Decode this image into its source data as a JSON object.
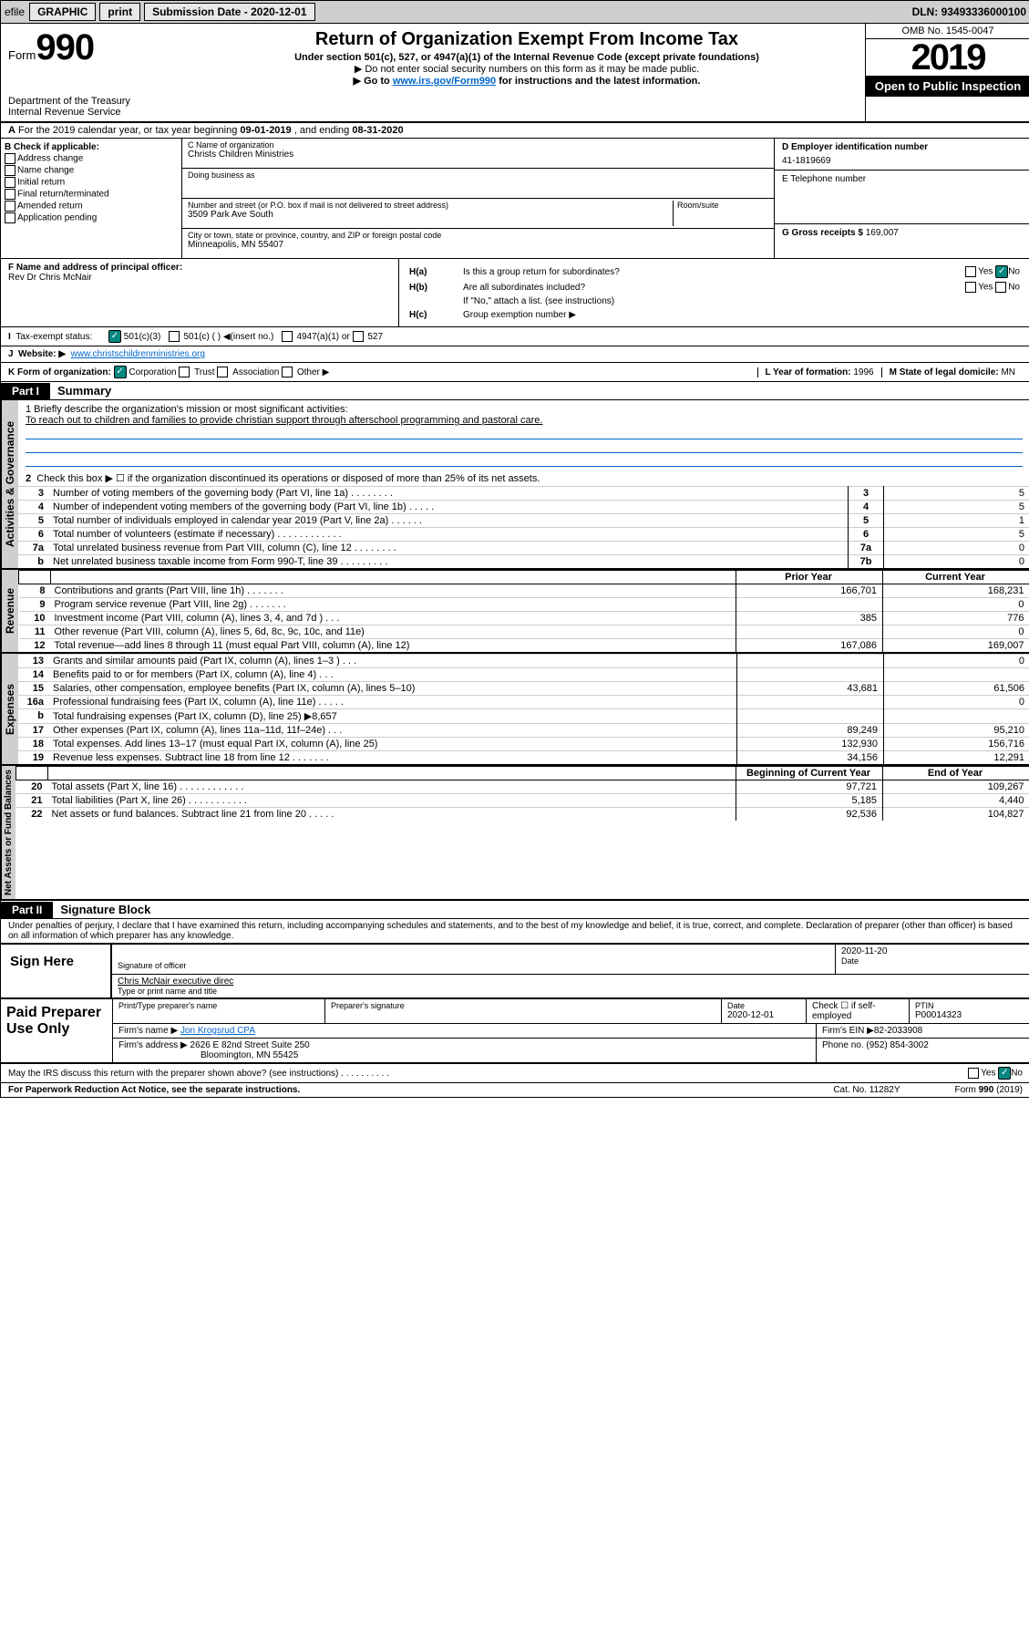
{
  "topbar": {
    "efile": "efile",
    "graphic": "GRAPHIC",
    "print": "print",
    "subdate_lbl": "Submission Date - ",
    "subdate": "2020-12-01",
    "dln_lbl": "DLN: ",
    "dln": "93493336000100"
  },
  "header": {
    "form": "Form",
    "num": "990",
    "dept": "Department of the Treasury",
    "irs": "Internal Revenue Service",
    "title": "Return of Organization Exempt From Income Tax",
    "sub": "Under section 501(c), 527, or 4947(a)(1) of the Internal Revenue Code (except private foundations)",
    "note1": "▶ Do not enter social security numbers on this form as it may be made public.",
    "note2a": "▶ Go to ",
    "note2link": "www.irs.gov/Form990",
    "note2b": " for instructions and the latest information.",
    "omb": "OMB No. 1545-0047",
    "year": "2019",
    "open": "Open to Public Inspection"
  },
  "lineA": {
    "a": "A",
    "txt1": "For the 2019 calendar year, or tax year beginning ",
    "d1": "09-01-2019",
    "txt2": " , and ending ",
    "d2": "08-31-2020"
  },
  "boxB": {
    "hdr": "B Check if applicable:",
    "opts": [
      "Address change",
      "Name change",
      "Initial return",
      "Final return/terminated",
      "Amended return",
      "Application pending"
    ]
  },
  "boxC": {
    "name_lbl": "C Name of organization",
    "name": "Christs Children Ministries",
    "dba_lbl": "Doing business as",
    "dba": "",
    "addr_lbl": "Number and street (or P.O. box if mail is not delivered to street address)",
    "room_lbl": "Room/suite",
    "addr": "3509 Park Ave South",
    "city_lbl": "City or town, state or province, country, and ZIP or foreign postal code",
    "city": "Minneapolis, MN  55407"
  },
  "boxD": {
    "lbl": "D Employer identification number",
    "val": "41-1819669"
  },
  "boxE": {
    "lbl": "E Telephone number",
    "val": ""
  },
  "boxG": {
    "lbl": "G Gross receipts $ ",
    "val": "169,007"
  },
  "boxF": {
    "lbl": "F  Name and address of principal officer:",
    "name": "Rev Dr Chris McNair"
  },
  "boxH": {
    "a": "H(a)",
    "a_txt": "Is this a group return for subordinates?",
    "b": "H(b)",
    "b_txt": "Are all subordinates included?",
    "b_note": "If \"No,\" attach a list. (see instructions)",
    "c": "H(c)",
    "c_txt": "Group exemption number ▶",
    "yes": "Yes",
    "no": "No"
  },
  "taxI": {
    "lbl": "Tax-exempt status:",
    "o1": "501(c)(3)",
    "o2": "501(c) (  ) ◀(insert no.)",
    "o3": "4947(a)(1) or",
    "o4": "527"
  },
  "website": {
    "lbl": "Website: ▶",
    "val": "www.christschildrenministries.org"
  },
  "lineK": {
    "k": "K Form of organization:",
    "corp": "Corporation",
    "trust": "Trust",
    "assoc": "Association",
    "other": "Other ▶",
    "l": "L Year of formation: ",
    "lval": "1996",
    "m": "M State of legal domicile: ",
    "mval": "MN"
  },
  "part1": {
    "hdr": "Part I",
    "title": "Summary",
    "q1": "1  Briefly describe the organization's mission or most significant activities:",
    "mission": "To reach out to children and families to provide christian support through afterschool programming and pastoral care.",
    "q2": "Check this box ▶ ☐  if the organization discontinued its operations or disposed of more than 25% of its net assets.",
    "rows_gov": [
      {
        "n": "3",
        "t": "Number of voting members of the governing body (Part VI, line 1a) .   .   .   .   .   .   .   .",
        "r": "3",
        "v": "5"
      },
      {
        "n": "4",
        "t": "Number of independent voting members of the governing body (Part VI, line 1b)   .   .   .   .   .",
        "r": "4",
        "v": "5"
      },
      {
        "n": "5",
        "t": "Total number of individuals employed in calendar year 2019 (Part V, line 2a)  .   .   .   .   .   .",
        "r": "5",
        "v": "1"
      },
      {
        "n": "6",
        "t": "Total number of volunteers (estimate if necessary)   .   .   .   .   .   .   .   .   .   .   .   .",
        "r": "6",
        "v": "5"
      },
      {
        "n": "7a",
        "t": "Total unrelated business revenue from Part VIII, column (C), line 12   .   .   .   .   .   .   .   .",
        "r": "7a",
        "v": "0"
      },
      {
        "n": "b",
        "t": "Net unrelated business taxable income from Form 990-T, line 39  .   .   .   .   .   .   .   .   .",
        "r": "7b",
        "v": "0"
      }
    ],
    "col_prior": "Prior Year",
    "col_curr": "Current Year",
    "rows_rev": [
      {
        "n": "8",
        "t": "Contributions and grants (Part VIII, line 1h)   .   .   .   .   .   .   .",
        "p": "166,701",
        "c": "168,231"
      },
      {
        "n": "9",
        "t": "Program service revenue (Part VIII, line 2g)   .   .   .   .   .   .   .",
        "p": "",
        "c": "0"
      },
      {
        "n": "10",
        "t": "Investment income (Part VIII, column (A), lines 3, 4, and 7d )   .   .   .",
        "p": "385",
        "c": "776"
      },
      {
        "n": "11",
        "t": "Other revenue (Part VIII, column (A), lines 5, 6d, 8c, 9c, 10c, and 11e)",
        "p": "",
        "c": "0"
      },
      {
        "n": "12",
        "t": "Total revenue—add lines 8 through 11 (must equal Part VIII, column (A), line 12)",
        "p": "167,086",
        "c": "169,007"
      }
    ],
    "rows_exp": [
      {
        "n": "13",
        "t": "Grants and similar amounts paid (Part IX, column (A), lines 1–3 )   .   .   .",
        "p": "",
        "c": "0"
      },
      {
        "n": "14",
        "t": "Benefits paid to or for members (Part IX, column (A), line 4)   .   .   .",
        "p": "",
        "c": ""
      },
      {
        "n": "15",
        "t": "Salaries, other compensation, employee benefits (Part IX, column (A), lines 5–10)",
        "p": "43,681",
        "c": "61,506"
      },
      {
        "n": "16a",
        "t": "Professional fundraising fees (Part IX, column (A), line 11e)   .   .   .   .   .",
        "p": "",
        "c": "0"
      },
      {
        "n": "b",
        "t": "Total fundraising expenses (Part IX, column (D), line 25) ▶8,657",
        "p": "",
        "c": ""
      },
      {
        "n": "17",
        "t": "Other expenses (Part IX, column (A), lines 11a–11d, 11f–24e)  .   .   .",
        "p": "89,249",
        "c": "95,210"
      },
      {
        "n": "18",
        "t": "Total expenses. Add lines 13–17 (must equal Part IX, column (A), line 25)",
        "p": "132,930",
        "c": "156,716"
      },
      {
        "n": "19",
        "t": "Revenue less expenses. Subtract line 18 from line 12   .   .   .   .   .   .   .",
        "p": "34,156",
        "c": "12,291"
      }
    ],
    "col_beg": "Beginning of Current Year",
    "col_end": "End of Year",
    "rows_net": [
      {
        "n": "20",
        "t": "Total assets (Part X, line 16)  .   .   .   .   .   .   .   .   .   .   .   .",
        "p": "97,721",
        "c": "109,267"
      },
      {
        "n": "21",
        "t": "Total liabilities (Part X, line 26)   .   .   .   .   .   .   .   .   .   .   .",
        "p": "5,185",
        "c": "4,440"
      },
      {
        "n": "22",
        "t": "Net assets or fund balances. Subtract line 21 from line 20   .   .   .   .   .",
        "p": "92,536",
        "c": "104,827"
      }
    ],
    "vert_gov": "Activities & Governance",
    "vert_rev": "Revenue",
    "vert_exp": "Expenses",
    "vert_net": "Net Assets or Fund Balances"
  },
  "part2": {
    "hdr": "Part II",
    "title": "Signature Block",
    "decl": "Under penalties of perjury, I declare that I have examined this return, including accompanying schedules and statements, and to the best of my knowledge and belief, it is true, correct, and complete. Declaration of preparer (other than officer) is based on all information of which preparer has any knowledge."
  },
  "sign": {
    "here": "Sign Here",
    "sig_lbl": "Signature of officer",
    "date": "2020-11-20",
    "date_lbl": "Date",
    "name": "Chris McNair  executive direc",
    "name_lbl": "Type or print name and title"
  },
  "paid": {
    "hdr": "Paid Preparer Use Only",
    "pt_lbl": "Print/Type preparer's name",
    "ps_lbl": "Preparer's signature",
    "d_lbl": "Date",
    "d": "2020-12-01",
    "chk": "Check ☐ if self-employed",
    "ptin_lbl": "PTIN",
    "ptin": "P00014323",
    "firm_lbl": "Firm's name     ▶",
    "firm": "Jon Krogsrud CPA",
    "ein_lbl": "Firm's EIN ▶",
    "ein": "82-2033908",
    "addr_lbl": "Firm's address ▶",
    "addr": "2626 E 82nd Street Suite 250",
    "addr2": "Bloomington, MN  55425",
    "ph_lbl": "Phone no. ",
    "ph": "(952) 854-3002"
  },
  "discuss": "May the IRS discuss this return with the preparer shown above? (see instructions)   .   .   .   .   .   .   .   .   .   .",
  "footer": {
    "l": "For Paperwork Reduction Act Notice, see the separate instructions.",
    "m": "Cat. No. 11282Y",
    "r": "Form 990 (2019)"
  }
}
